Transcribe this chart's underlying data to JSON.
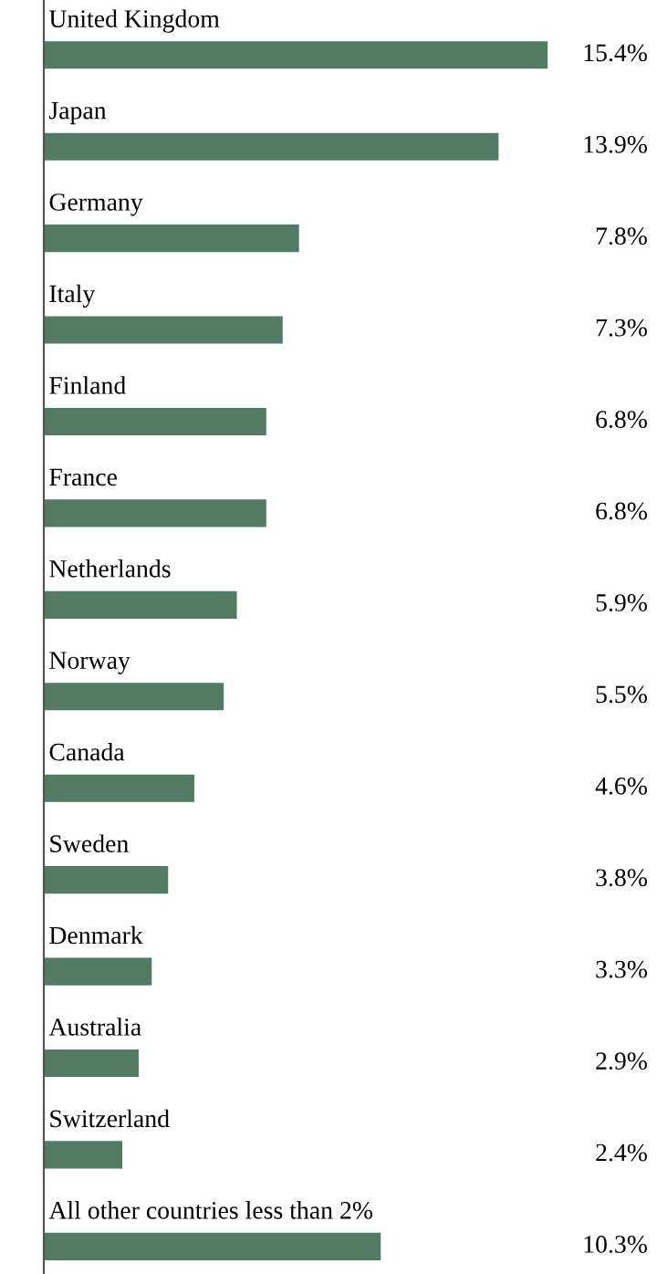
{
  "chart_data": {
    "type": "bar",
    "orientation": "horizontal",
    "categories": [
      "United Kingdom",
      "Japan",
      "Germany",
      "Italy",
      "Finland",
      "France",
      "Netherlands",
      "Norway",
      "Canada",
      "Sweden",
      "Denmark",
      "Australia",
      "Switzerland",
      "All other countries less than 2%"
    ],
    "values": [
      15.4,
      13.9,
      7.8,
      7.3,
      6.8,
      6.8,
      5.9,
      5.5,
      4.6,
      3.8,
      3.3,
      2.9,
      2.4,
      10.3
    ],
    "value_labels": [
      "15.4%",
      "13.9%",
      "7.8%",
      "7.3%",
      "6.8%",
      "6.8%",
      "5.9%",
      "5.5%",
      "4.6%",
      "3.8%",
      "3.3%",
      "2.9%",
      "2.4%",
      "10.3%"
    ],
    "color": "#537a62"
  }
}
